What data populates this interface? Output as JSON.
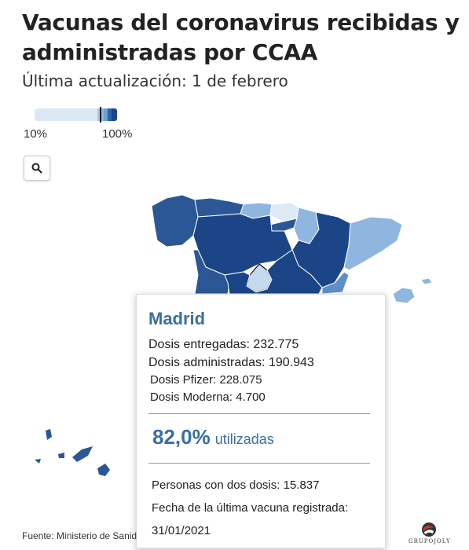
{
  "title": "Vacunas del coronavirus recibidas y administradas por CCAA",
  "subtitle": "Última actualización: 1 de febrero",
  "legend": {
    "min_label": "10%",
    "max_label": "100%",
    "colors": [
      "#dce9f5",
      "#aac8e6",
      "#6fa0d2",
      "#2f64a8",
      "#1b4587"
    ],
    "marker_value": 0.82
  },
  "search": {
    "icon": "search-icon"
  },
  "map": {
    "colors": {
      "darkest": "#1b4587",
      "dark": "#2b5797",
      "medium": "#5d8fc9",
      "light": "#8fb6df",
      "lightest": "#dde9f5"
    }
  },
  "tooltip": {
    "region": "Madrid",
    "dosis_entregadas": "Dosis entregadas: 232.775",
    "dosis_administradas": "Dosis administradas: 190.943",
    "dosis_pfizer": "Dosis Pfizer: 228.075",
    "dosis_moderna": "Dosis Moderna: 4.700",
    "pct_value": "82,0%",
    "pct_label": "utilizadas",
    "dos_dosis": "Personas con dos dosis: 15.837",
    "fecha_label": "Fecha de la última vacuna registrada:",
    "fecha_value": "31/01/2021"
  },
  "source": "Fuente: Ministerio de Sanid",
  "logo_text": "GRUPOJOLY"
}
